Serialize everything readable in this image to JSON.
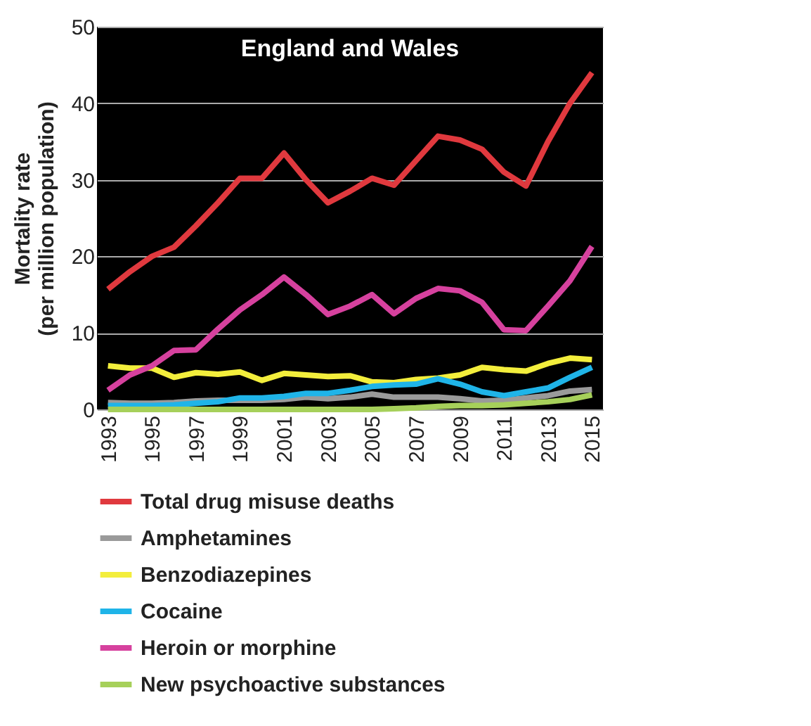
{
  "chart_data": {
    "type": "line",
    "title": "England and Wales",
    "ylabel": "Mortality rate\n(per million population)",
    "categories": [
      "1993",
      null,
      "1995",
      null,
      "1997",
      null,
      "1999",
      null,
      "2001",
      null,
      "2003",
      null,
      "2005",
      null,
      "2007",
      null,
      "2009",
      null,
      "2011",
      null,
      "2013",
      null,
      "2015"
    ],
    "series": [
      {
        "name": "Total drug misuse deaths",
        "color": "#e0393e",
        "values": [
          15.7,
          18,
          20,
          21.2,
          24,
          27,
          30.2,
          30.2,
          33.5,
          30,
          27,
          28.5,
          30.2,
          29.3,
          32.5,
          35.7,
          35.2,
          34,
          31,
          29.2,
          35,
          40,
          44
        ]
      },
      {
        "name": "Amphetamines",
        "color": "#9a9a9a",
        "values": [
          0.9,
          0.8,
          0.8,
          0.9,
          1.1,
          1.2,
          1.2,
          1.2,
          1.3,
          1.6,
          1.4,
          1.6,
          2.0,
          1.6,
          1.6,
          1.6,
          1.4,
          1.1,
          1.2,
          1.5,
          1.8,
          2.4,
          2.6
        ]
      },
      {
        "name": "Benzodiazepines",
        "color": "#f3ee3c",
        "values": [
          5.7,
          5.4,
          5.4,
          4.2,
          4.8,
          4.6,
          4.9,
          3.8,
          4.7,
          4.5,
          4.3,
          4.4,
          3.6,
          3.5,
          3.9,
          4.1,
          4.5,
          5.5,
          5.2,
          5.0,
          6.0,
          6.7,
          6.5
        ]
      },
      {
        "name": "Cocaine",
        "color": "#1fb4e8",
        "values": [
          0.5,
          0.5,
          0.5,
          0.6,
          0.8,
          1.0,
          1.5,
          1.5,
          1.7,
          2.1,
          2.1,
          2.5,
          3.0,
          3.2,
          3.3,
          4.0,
          3.3,
          2.3,
          1.8,
          2.3,
          2.8,
          4.2,
          5.5
        ]
      },
      {
        "name": "Heroin or morphine",
        "color": "#d6419e",
        "values": [
          2.5,
          4.5,
          5.7,
          7.7,
          7.8,
          10.5,
          13,
          15,
          17.3,
          15,
          12.4,
          13.5,
          15,
          12.5,
          14.5,
          15.8,
          15.5,
          14,
          10.4,
          10.3,
          13.5,
          16.8,
          21.3
        ]
      },
      {
        "name": "New psychoactive substances",
        "color": "#a6d05a",
        "values": [
          0,
          0,
          0,
          0,
          0,
          0,
          0,
          0,
          0,
          0,
          0,
          0,
          0,
          0.1,
          0.2,
          0.4,
          0.5,
          0.5,
          0.6,
          0.8,
          1.0,
          1.3,
          1.9
        ]
      }
    ],
    "ylim": [
      0,
      50
    ],
    "yticks": [
      0,
      10,
      20,
      30,
      40,
      50
    ],
    "grid": "y",
    "legend": "bottom",
    "marker": "none",
    "line_style": "solid"
  }
}
